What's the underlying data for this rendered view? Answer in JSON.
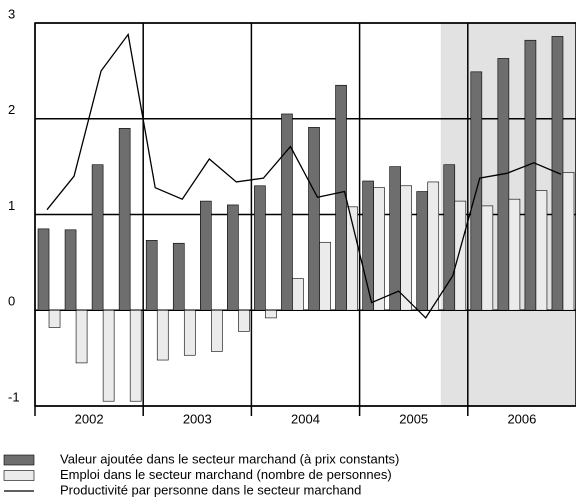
{
  "chart_data": {
    "type": "bar",
    "categories": [
      null,
      null,
      null,
      null,
      null,
      null,
      null,
      null,
      null,
      null,
      null,
      null,
      null,
      null,
      null,
      null,
      null,
      null,
      null,
      null
    ],
    "years": [
      "2002",
      "2003",
      "2004",
      "2005",
      "2006"
    ],
    "series": [
      {
        "name": "Valeur ajoutée dans le secteur marchand (à prix constants)",
        "type": "bar",
        "color": "#6e6e6e",
        "values": [
          0.85,
          0.84,
          1.52,
          1.9,
          0.73,
          0.7,
          1.14,
          1.1,
          1.3,
          2.05,
          1.91,
          2.35,
          1.35,
          1.5,
          1.24,
          1.52,
          2.49,
          2.63,
          2.82,
          2.86
        ]
      },
      {
        "name": "Emploi dans le secteur marchand (nombre de personnes)",
        "type": "bar",
        "color": "#ebebeb",
        "values": [
          -0.18,
          -0.55,
          -0.95,
          -0.95,
          -0.52,
          -0.47,
          -0.43,
          -0.22,
          -0.08,
          0.33,
          0.71,
          1.08,
          1.28,
          1.3,
          1.34,
          1.14,
          1.09,
          1.16,
          1.25,
          1.44
        ]
      },
      {
        "name": "Productivité par personne dans le secteur marchand",
        "type": "line",
        "color": "#000000",
        "values": [
          1.05,
          1.4,
          2.5,
          2.88,
          1.28,
          1.16,
          1.58,
          1.34,
          1.38,
          1.71,
          1.18,
          1.24,
          0.08,
          0.2,
          -0.08,
          0.36,
          1.38,
          1.43,
          1.54,
          1.42
        ]
      }
    ],
    "ylim": [
      -1,
      3
    ],
    "yticks": [
      -1,
      0,
      1,
      2,
      3
    ],
    "grid": true,
    "shaded_categories": [
      15,
      19
    ],
    "shade_color": "#e2e2e2"
  }
}
